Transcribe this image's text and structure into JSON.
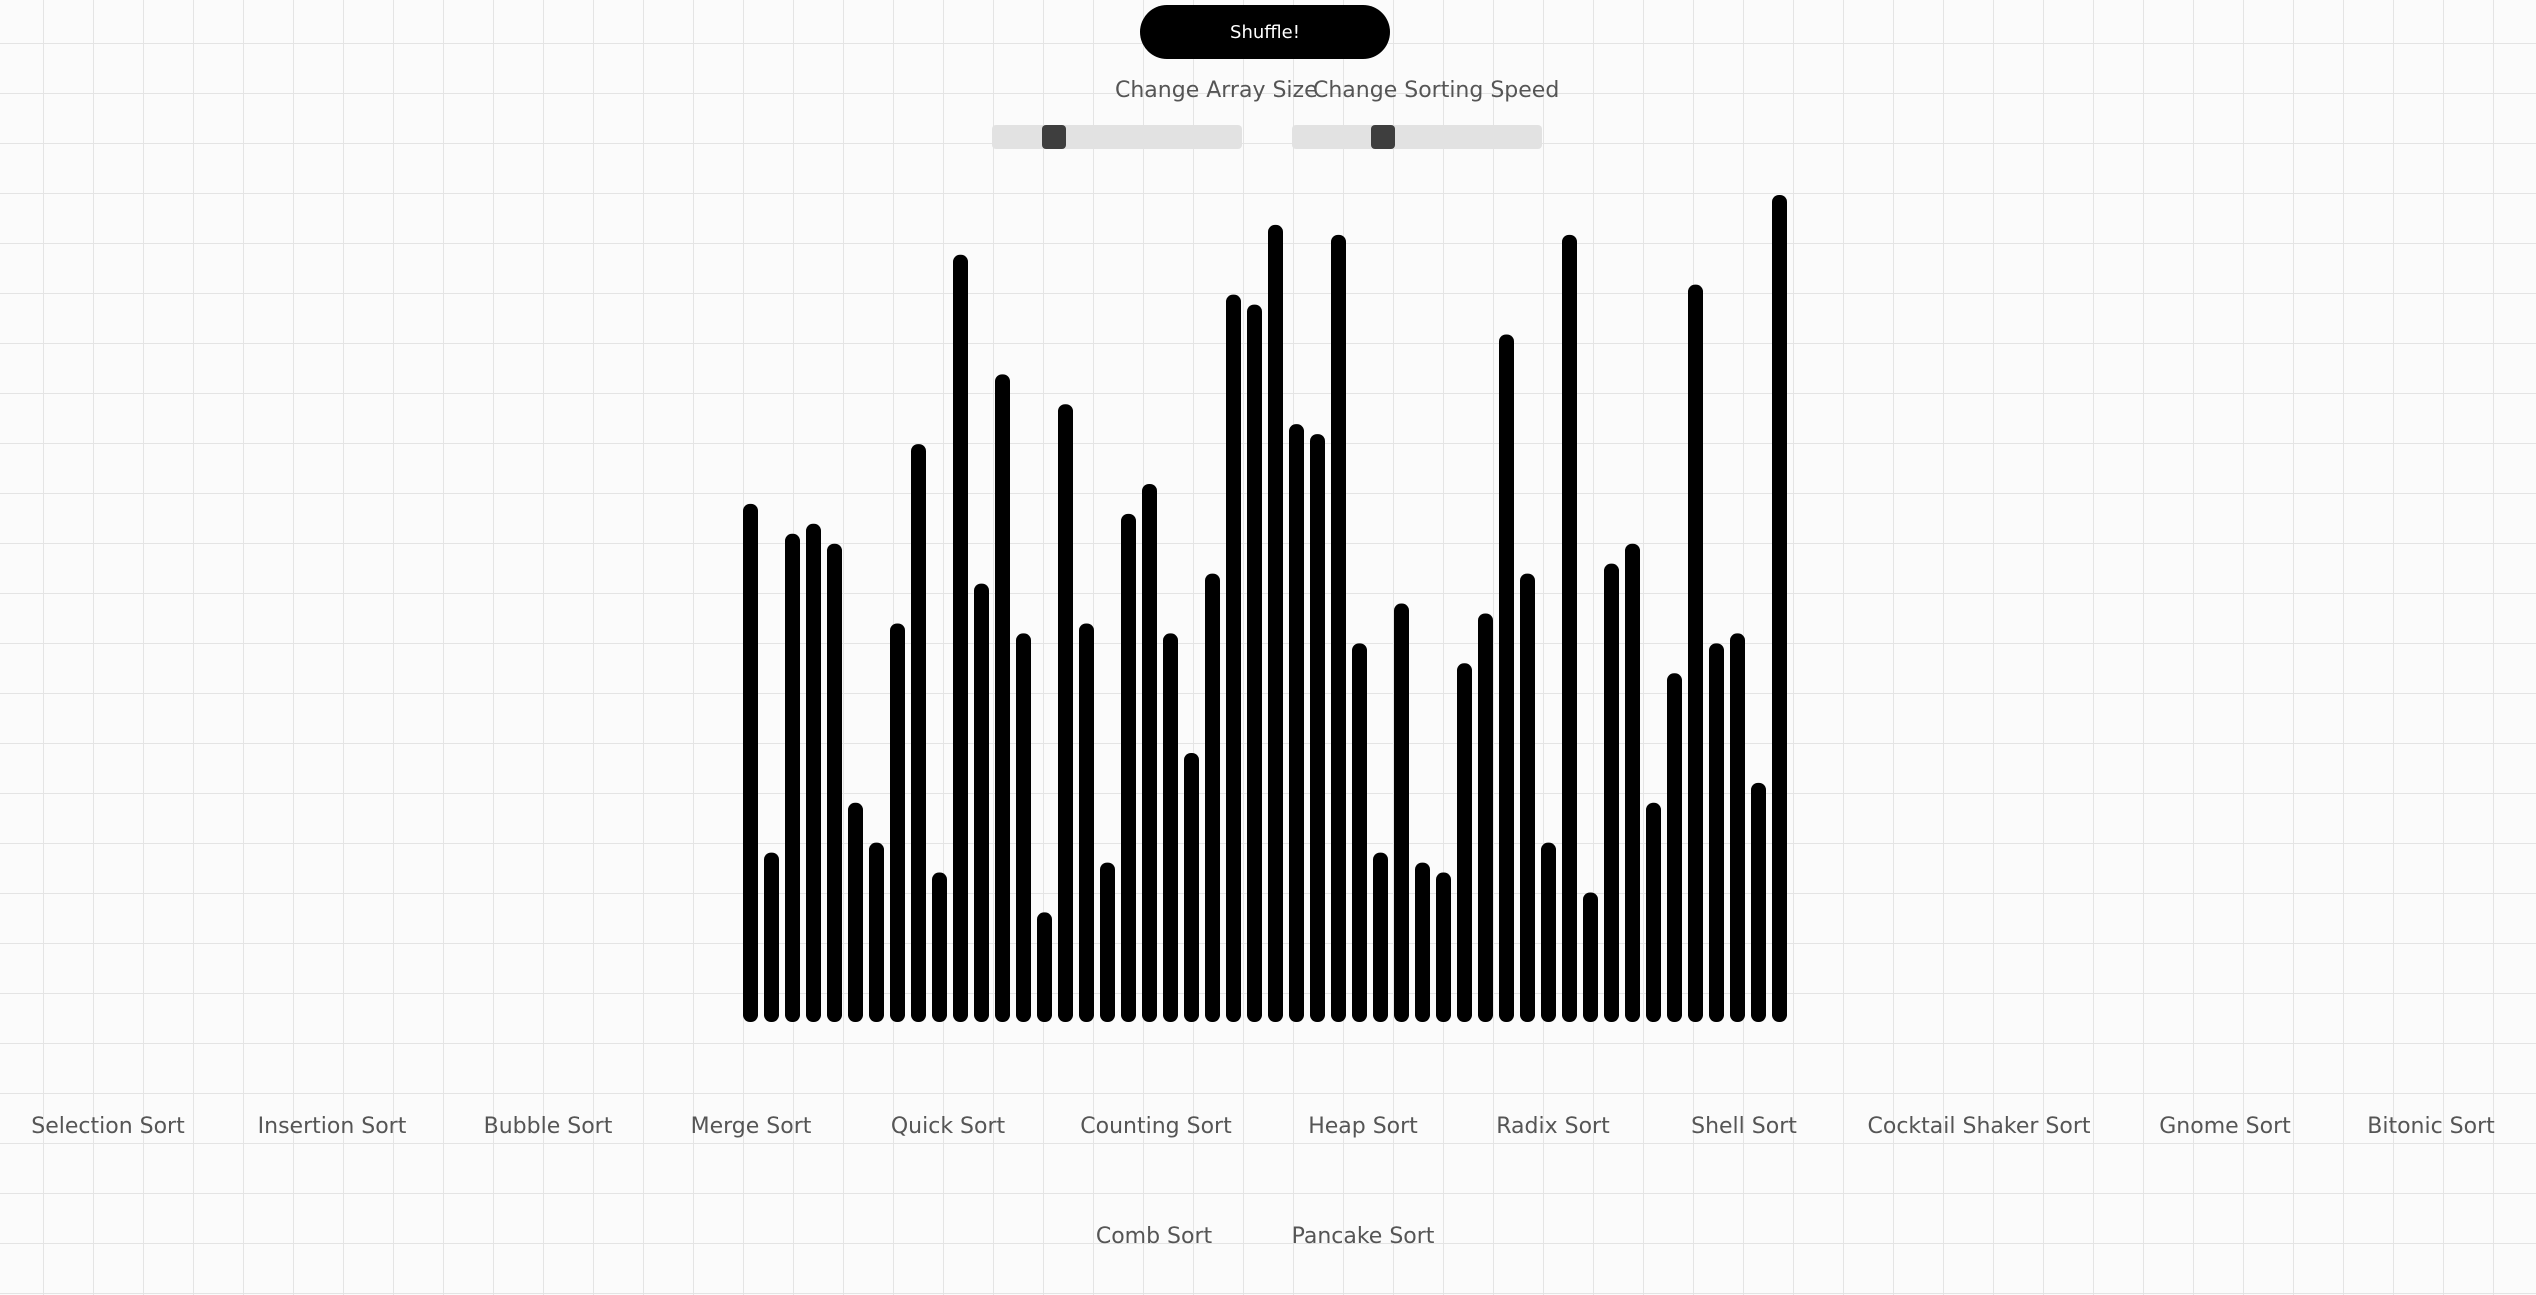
{
  "controls": {
    "shuffle_label": "Shuffle!",
    "array_size_label": "Change Array Size",
    "array_size_value": 0.22,
    "speed_label": "Change Sorting Speed",
    "speed_value": 0.35
  },
  "chart_data": {
    "type": "bar",
    "values": [
      52,
      17,
      49,
      50,
      48,
      22,
      18,
      40,
      58,
      15,
      77,
      44,
      65,
      39,
      11,
      62,
      40,
      16,
      51,
      54,
      39,
      27,
      45,
      73,
      72,
      80,
      60,
      59,
      79,
      38,
      17,
      42,
      16,
      15,
      36,
      41,
      69,
      45,
      18,
      79,
      13,
      46,
      48,
      22,
      35,
      74,
      38,
      39,
      24,
      83
    ],
    "ylim": [
      0,
      83
    ],
    "color": "#000000"
  },
  "algorithms_row1": [
    "Selection Sort",
    "Insertion Sort",
    "Bubble Sort",
    "Merge Sort",
    "Quick Sort",
    "Counting Sort",
    "Heap Sort",
    "Radix Sort",
    "Shell Sort",
    "Cocktail Shaker Sort",
    "Gnome Sort",
    "Bitonic Sort"
  ],
  "algorithms_row2": [
    "Comb Sort",
    "Pancake Sort"
  ]
}
